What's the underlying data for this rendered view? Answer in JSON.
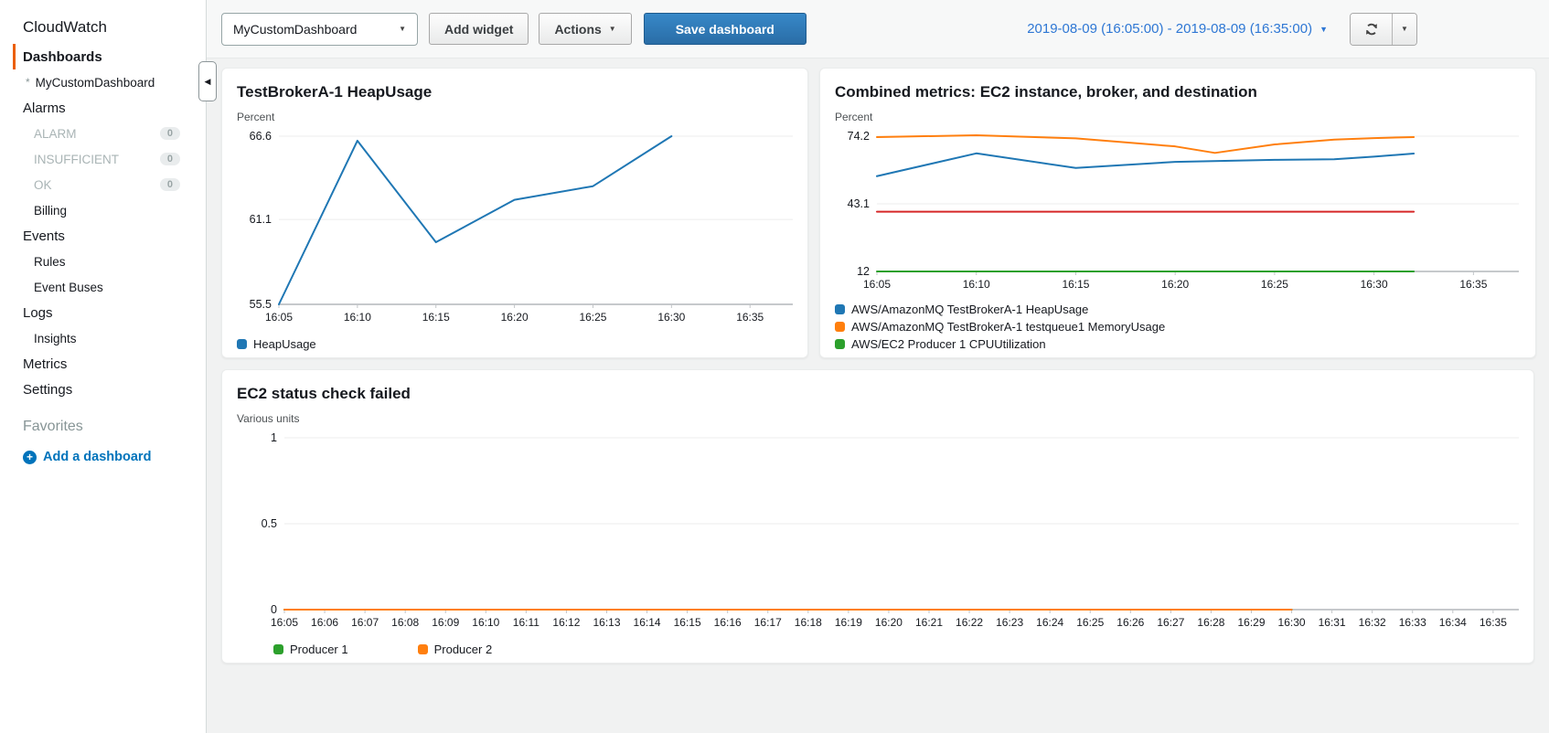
{
  "colors": {
    "accent_orange": "#eb5f07",
    "link_blue": "#0073bb",
    "date_blue": "#2e77d4",
    "series_blue": "#1f77b4",
    "series_orange": "#ff7f0e",
    "series_green": "#2ca02c",
    "series_red": "#d62728"
  },
  "icons": {
    "caret": "▼",
    "collapse": "◀",
    "plus": "+"
  },
  "sidebar": {
    "brand": "CloudWatch",
    "items": [
      {
        "label": "Dashboards"
      },
      {
        "label": "MyCustomDashboard",
        "bullet": "*"
      },
      {
        "label": "Alarms"
      },
      {
        "label": "ALARM",
        "badge": "0"
      },
      {
        "label": "INSUFFICIENT",
        "badge": "0"
      },
      {
        "label": "OK",
        "badge": "0"
      },
      {
        "label": "Billing"
      },
      {
        "label": "Events"
      },
      {
        "label": "Rules"
      },
      {
        "label": "Event Buses"
      },
      {
        "label": "Logs"
      },
      {
        "label": "Insights"
      },
      {
        "label": "Metrics"
      },
      {
        "label": "Settings"
      }
    ],
    "favorites_header": "Favorites",
    "add_dashboard_label": "Add a dashboard"
  },
  "toolbar": {
    "dashboard_select_value": "MyCustomDashboard",
    "add_widget_label": "Add widget",
    "actions_label": "Actions",
    "save_dashboard_label": "Save dashboard",
    "time_range_label": "2019-08-09 (16:05:00) - 2019-08-09 (16:35:00)"
  },
  "chart_data": [
    {
      "type": "line",
      "title": "TestBrokerA-1 HeapUsage",
      "ylabel": "Percent",
      "ylim": [
        55.5,
        66.6
      ],
      "yticks": [
        66.6,
        61.1,
        55.5
      ],
      "x_domain_minutes": [
        0,
        30
      ],
      "xticks": [
        "16:05",
        "16:10",
        "16:15",
        "16:20",
        "16:25",
        "16:30",
        "16:35"
      ],
      "grid": true,
      "legend_position": "bottom",
      "series": [
        {
          "name": "HeapUsage",
          "color": "#1f77b4",
          "x_minutes": [
            0,
            5,
            10,
            15,
            20,
            25
          ],
          "values": [
            55.5,
            66.3,
            59.6,
            62.4,
            63.3,
            66.6
          ]
        }
      ],
      "legend": [
        {
          "label": "HeapUsage",
          "color": "#1f77b4"
        }
      ]
    },
    {
      "type": "line",
      "title": "Combined metrics: EC2 instance, broker, and destination",
      "ylabel": "Percent",
      "ylim": [
        12,
        74.2
      ],
      "yticks": [
        74.2,
        43.1,
        12
      ],
      "x_domain_minutes": [
        0,
        30
      ],
      "xticks": [
        "16:05",
        "16:10",
        "16:15",
        "16:20",
        "16:25",
        "16:30",
        "16:35"
      ],
      "grid": true,
      "legend_position": "bottom",
      "series": [
        {
          "name": "AWS/AmazonMQ TestBrokerA-1 HeapUsage",
          "color": "#1f77b4",
          "x_minutes": [
            0,
            5,
            10,
            15,
            20,
            23,
            25,
            27
          ],
          "values": [
            55.8,
            66.3,
            59.6,
            62.4,
            63.3,
            63.6,
            64.8,
            66.2
          ]
        },
        {
          "name": "AWS/AmazonMQ TestBrokerA-1 testqueue1 MemoryUsage",
          "color": "#ff7f0e",
          "x_minutes": [
            0,
            5,
            10,
            15,
            17,
            20,
            23,
            25,
            27
          ],
          "values": [
            73.8,
            74.6,
            73.2,
            69.5,
            66.5,
            70.4,
            72.6,
            73.3,
            73.8
          ]
        },
        {
          "name": "AWS/EC2 Producer 1 CPUUtilization",
          "color": "#2ca02c",
          "x_minutes": [
            0,
            27
          ],
          "values": [
            12,
            12
          ]
        },
        {
          "name": "unlabeled",
          "color": "#d62728",
          "x_minutes": [
            0,
            27
          ],
          "values": [
            39.5,
            39.5
          ]
        }
      ],
      "legend": [
        {
          "label": "AWS/AmazonMQ TestBrokerA-1 HeapUsage",
          "color": "#1f77b4"
        },
        {
          "label": "AWS/AmazonMQ TestBrokerA-1 testqueue1 MemoryUsage",
          "color": "#ff7f0e"
        },
        {
          "label": "AWS/EC2 Producer 1 CPUUtilization",
          "color": "#2ca02c"
        }
      ]
    },
    {
      "type": "line",
      "title": "EC2 status check failed",
      "ylabel": "Various units",
      "ylim": [
        0,
        1
      ],
      "yticks": [
        1,
        0.5,
        0
      ],
      "x_domain_minutes": [
        0,
        30
      ],
      "xticks": [
        "16:05",
        "16:06",
        "16:07",
        "16:08",
        "16:09",
        "16:10",
        "16:11",
        "16:12",
        "16:13",
        "16:14",
        "16:15",
        "16:16",
        "16:17",
        "16:18",
        "16:19",
        "16:20",
        "16:21",
        "16:22",
        "16:23",
        "16:24",
        "16:25",
        "16:26",
        "16:27",
        "16:28",
        "16:29",
        "16:30",
        "16:31",
        "16:32",
        "16:33",
        "16:34",
        "16:35"
      ],
      "grid": true,
      "legend_position": "bottom",
      "series": [
        {
          "name": "Producer 1",
          "color": "#2ca02c",
          "x_minutes": [
            0,
            25
          ],
          "values": [
            0,
            0
          ]
        },
        {
          "name": "Producer 2",
          "color": "#ff7f0e",
          "x_minutes": [
            0,
            25
          ],
          "values": [
            0,
            0
          ]
        }
      ],
      "legend": [
        {
          "label": "Producer 1",
          "color": "#2ca02c"
        },
        {
          "label": "Producer 2",
          "color": "#ff7f0e"
        }
      ]
    }
  ]
}
